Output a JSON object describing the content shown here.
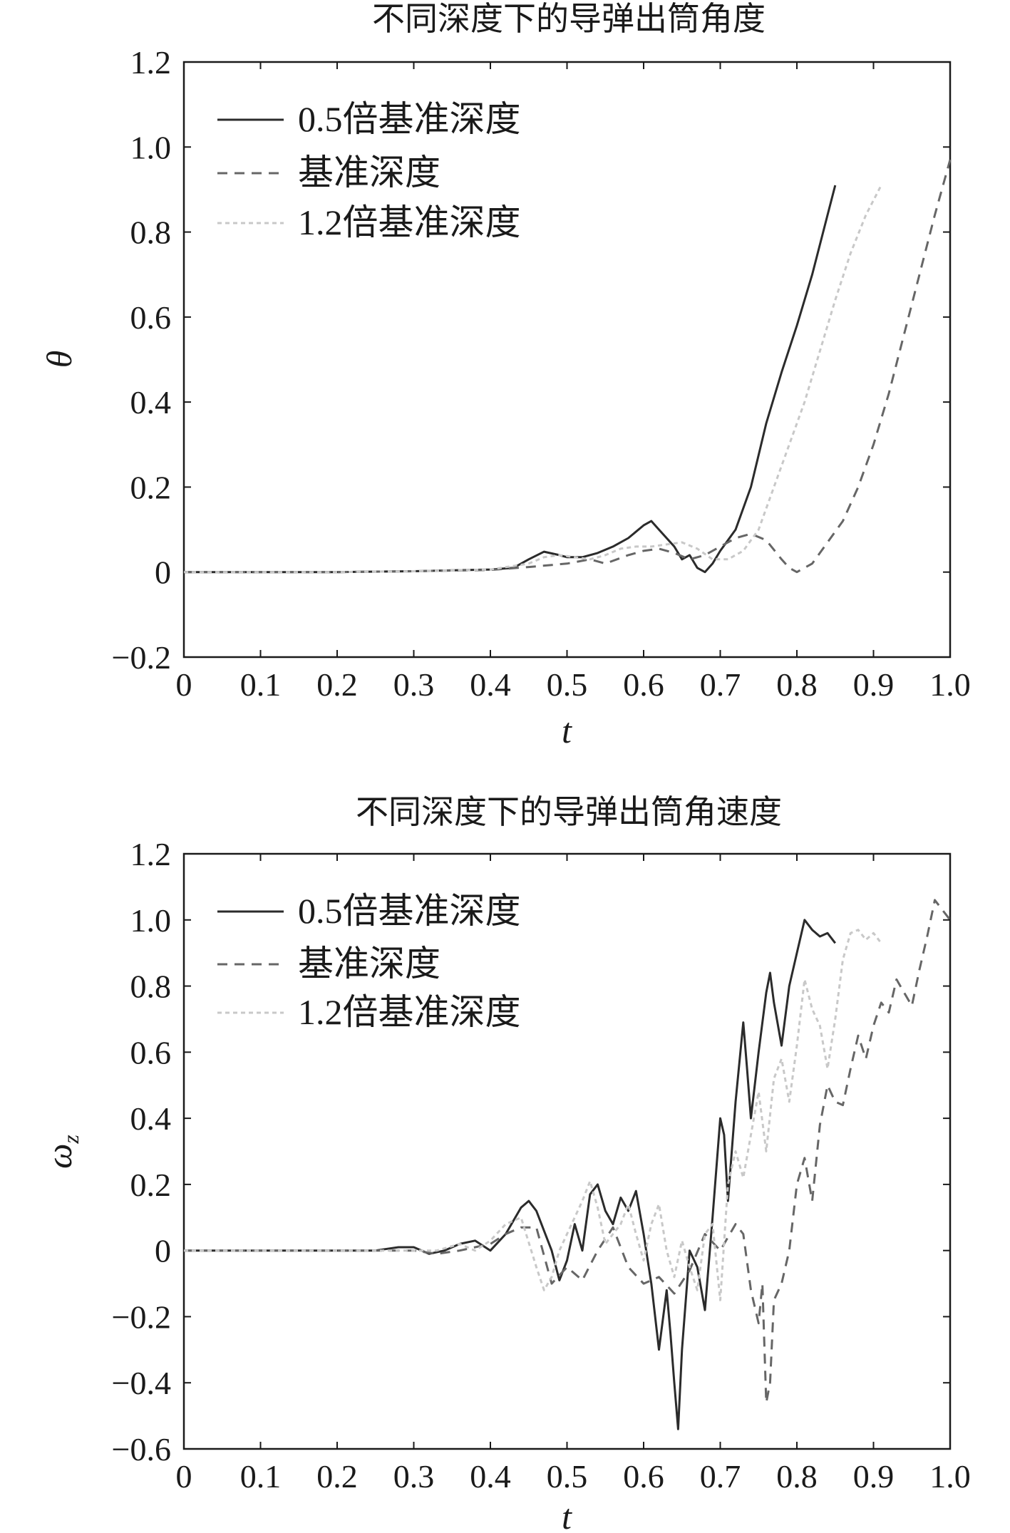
{
  "chart_data": [
    {
      "type": "line",
      "title": "不同深度下的导弹出筒角度",
      "xlabel": "t",
      "ylabel": "θ",
      "xlim": [
        0,
        1.0
      ],
      "ylim": [
        -0.2,
        1.2
      ],
      "xticks": [
        "0",
        "0.1",
        "0.2",
        "0.3",
        "0.4",
        "0.5",
        "0.6",
        "0.7",
        "0.8",
        "0.9",
        "1.0"
      ],
      "yticks": [
        "−0.2",
        "0",
        "0.2",
        "0.4",
        "0.6",
        "0.8",
        "1.0",
        "1.2"
      ],
      "grid": false,
      "legend_position": "top-left",
      "series": [
        {
          "name": "0.5倍基准深度",
          "style": "solid",
          "color": "#2b2b2b",
          "x": [
            0,
            0.1,
            0.2,
            0.3,
            0.35,
            0.4,
            0.43,
            0.45,
            0.47,
            0.49,
            0.5,
            0.52,
            0.54,
            0.56,
            0.58,
            0.6,
            0.61,
            0.62,
            0.64,
            0.65,
            0.66,
            0.67,
            0.68,
            0.69,
            0.7,
            0.72,
            0.74,
            0.76,
            0.78,
            0.8,
            0.82,
            0.84,
            0.85
          ],
          "y": [
            0,
            0,
            0,
            0.002,
            0.004,
            0.006,
            0.01,
            0.03,
            0.048,
            0.04,
            0.035,
            0.035,
            0.045,
            0.06,
            0.08,
            0.11,
            0.12,
            0.1,
            0.06,
            0.03,
            0.04,
            0.01,
            0,
            0.02,
            0.05,
            0.1,
            0.2,
            0.35,
            0.47,
            0.58,
            0.7,
            0.84,
            0.91
          ]
        },
        {
          "name": "基准深度",
          "style": "dashed",
          "color": "#666666",
          "x": [
            0,
            0.1,
            0.2,
            0.3,
            0.4,
            0.45,
            0.5,
            0.53,
            0.55,
            0.58,
            0.6,
            0.62,
            0.64,
            0.66,
            0.68,
            0.7,
            0.72,
            0.74,
            0.76,
            0.78,
            0.79,
            0.8,
            0.82,
            0.84,
            0.86,
            0.88,
            0.9,
            0.92,
            0.94,
            0.96,
            0.98,
            1.0
          ],
          "y": [
            0,
            0,
            0,
            0.002,
            0.005,
            0.012,
            0.02,
            0.03,
            0.02,
            0.04,
            0.05,
            0.055,
            0.045,
            0.03,
            0.04,
            0.06,
            0.08,
            0.09,
            0.075,
            0.03,
            0.01,
            0.0,
            0.02,
            0.07,
            0.12,
            0.2,
            0.3,
            0.42,
            0.56,
            0.7,
            0.84,
            0.97
          ]
        },
        {
          "name": "1.2倍基准深度",
          "style": "dotted",
          "color": "#c8c8c8",
          "x": [
            0,
            0.1,
            0.2,
            0.3,
            0.4,
            0.45,
            0.47,
            0.49,
            0.51,
            0.53,
            0.55,
            0.57,
            0.59,
            0.61,
            0.63,
            0.65,
            0.67,
            0.69,
            0.71,
            0.73,
            0.75,
            0.77,
            0.79,
            0.81,
            0.83,
            0.85,
            0.87,
            0.89,
            0.91
          ],
          "y": [
            0,
            0,
            0,
            0.002,
            0.006,
            0.02,
            0.035,
            0.04,
            0.035,
            0.03,
            0.04,
            0.055,
            0.06,
            0.06,
            0.065,
            0.07,
            0.055,
            0.03,
            0.03,
            0.05,
            0.1,
            0.2,
            0.3,
            0.4,
            0.52,
            0.64,
            0.75,
            0.84,
            0.91
          ]
        }
      ]
    },
    {
      "type": "line",
      "title": "不同深度下的导弹出筒角速度",
      "xlabel": "t",
      "ylabel": "ω",
      "ylabel_subscript": "z",
      "xlim": [
        0,
        1.0
      ],
      "ylim": [
        -0.6,
        1.2
      ],
      "xticks": [
        "0",
        "0.1",
        "0.2",
        "0.3",
        "0.4",
        "0.5",
        "0.6",
        "0.7",
        "0.8",
        "0.9",
        "1.0"
      ],
      "yticks": [
        "−0.6",
        "−0.4",
        "−0.2",
        "0",
        "0.2",
        "0.4",
        "0.6",
        "0.8",
        "1.0",
        "1.2"
      ],
      "grid": false,
      "legend_position": "top-left",
      "series": [
        {
          "name": "0.5倍基准深度",
          "style": "solid",
          "color": "#2b2b2b",
          "x": [
            0,
            0.1,
            0.2,
            0.25,
            0.28,
            0.3,
            0.32,
            0.34,
            0.36,
            0.38,
            0.4,
            0.42,
            0.44,
            0.45,
            0.46,
            0.48,
            0.49,
            0.5,
            0.51,
            0.52,
            0.53,
            0.54,
            0.55,
            0.56,
            0.57,
            0.58,
            0.59,
            0.6,
            0.61,
            0.62,
            0.63,
            0.635,
            0.64,
            0.645,
            0.65,
            0.66,
            0.67,
            0.68,
            0.69,
            0.7,
            0.705,
            0.71,
            0.72,
            0.73,
            0.735,
            0.74,
            0.75,
            0.76,
            0.765,
            0.77,
            0.78,
            0.79,
            0.8,
            0.81,
            0.82,
            0.83,
            0.84,
            0.85
          ],
          "y": [
            0,
            0,
            0,
            0,
            0.01,
            0.01,
            -0.01,
            0,
            0.02,
            0.03,
            0.0,
            0.05,
            0.13,
            0.15,
            0.12,
            0.0,
            -0.09,
            -0.03,
            0.08,
            0.0,
            0.17,
            0.2,
            0.12,
            0.08,
            0.16,
            0.12,
            0.18,
            0.05,
            -0.1,
            -0.3,
            -0.12,
            -0.25,
            -0.4,
            -0.54,
            -0.3,
            0.0,
            -0.05,
            -0.18,
            0.1,
            0.4,
            0.35,
            0.15,
            0.45,
            0.69,
            0.55,
            0.4,
            0.6,
            0.78,
            0.84,
            0.75,
            0.62,
            0.8,
            0.9,
            1.0,
            0.97,
            0.95,
            0.96,
            0.93
          ]
        },
        {
          "name": "基准深度",
          "style": "dashed",
          "color": "#666666",
          "x": [
            0,
            0.1,
            0.2,
            0.25,
            0.3,
            0.33,
            0.36,
            0.4,
            0.42,
            0.44,
            0.46,
            0.48,
            0.5,
            0.52,
            0.54,
            0.56,
            0.58,
            0.6,
            0.62,
            0.64,
            0.66,
            0.68,
            0.7,
            0.72,
            0.73,
            0.74,
            0.75,
            0.755,
            0.76,
            0.765,
            0.77,
            0.78,
            0.79,
            0.8,
            0.81,
            0.82,
            0.83,
            0.84,
            0.85,
            0.86,
            0.87,
            0.88,
            0.89,
            0.9,
            0.91,
            0.92,
            0.93,
            0.94,
            0.95,
            0.96,
            0.97,
            0.98,
            1.0
          ],
          "y": [
            0,
            0,
            0,
            0,
            0,
            -0.01,
            0.0,
            0.02,
            0.05,
            0.07,
            0.07,
            -0.1,
            -0.05,
            -0.09,
            0.0,
            0.07,
            -0.05,
            -0.1,
            -0.08,
            -0.13,
            -0.06,
            0.05,
            0.0,
            0.08,
            0.05,
            -0.12,
            -0.22,
            -0.1,
            -0.46,
            -0.4,
            -0.15,
            -0.1,
            0.0,
            0.2,
            0.28,
            0.15,
            0.38,
            0.5,
            0.45,
            0.44,
            0.55,
            0.65,
            0.58,
            0.68,
            0.75,
            0.72,
            0.82,
            0.78,
            0.74,
            0.85,
            0.95,
            1.06,
            1.0
          ]
        },
        {
          "name": "1.2倍基准深度",
          "style": "dotted",
          "color": "#c8c8c8",
          "x": [
            0,
            0.1,
            0.2,
            0.25,
            0.3,
            0.33,
            0.36,
            0.38,
            0.4,
            0.42,
            0.44,
            0.46,
            0.47,
            0.48,
            0.49,
            0.5,
            0.52,
            0.53,
            0.54,
            0.55,
            0.56,
            0.57,
            0.58,
            0.59,
            0.6,
            0.61,
            0.62,
            0.63,
            0.64,
            0.65,
            0.66,
            0.67,
            0.68,
            0.69,
            0.7,
            0.71,
            0.72,
            0.73,
            0.74,
            0.75,
            0.76,
            0.77,
            0.78,
            0.79,
            0.8,
            0.81,
            0.82,
            0.83,
            0.84,
            0.85,
            0.86,
            0.87,
            0.88,
            0.89,
            0.9,
            0.91
          ],
          "y": [
            0,
            0,
            0,
            0,
            0,
            0.0,
            0.02,
            0.0,
            0.03,
            0.08,
            0.1,
            -0.05,
            -0.12,
            -0.08,
            0.0,
            0.05,
            0.15,
            0.21,
            0.13,
            0.02,
            0.05,
            0.08,
            0.14,
            0.05,
            -0.03,
            0.08,
            0.14,
            0.0,
            -0.08,
            0.03,
            -0.05,
            -0.12,
            0.05,
            0.08,
            -0.15,
            0.2,
            0.3,
            0.22,
            0.35,
            0.48,
            0.3,
            0.52,
            0.58,
            0.45,
            0.62,
            0.82,
            0.73,
            0.68,
            0.55,
            0.7,
            0.88,
            0.96,
            0.97,
            0.94,
            0.96,
            0.93
          ]
        }
      ]
    }
  ]
}
